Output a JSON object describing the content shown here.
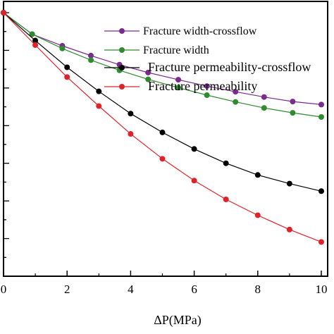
{
  "chart_data": {
    "type": "line",
    "xlabel": "ΔP(MPa)",
    "ylabel": "",
    "xlim": [
      0,
      10.2
    ],
    "ylim": [
      0.3,
      1.03
    ],
    "x_ticks": [
      0,
      2,
      4,
      6,
      8,
      10
    ],
    "x_tick_labels": [
      "0",
      "2",
      "4",
      "6",
      "8",
      "10"
    ],
    "grid": false,
    "legend_position": "top-right",
    "series": [
      {
        "name": "Fracture width-crossflow",
        "color": "#7b2a8e",
        "x": [
          0,
          0.9,
          1.85,
          2.75,
          3.65,
          4.55,
          5.5,
          6.4,
          7.3,
          8.2,
          9.1,
          10
        ],
        "y": [
          1.0,
          0.943,
          0.912,
          0.886,
          0.862,
          0.841,
          0.822,
          0.805,
          0.79,
          0.776,
          0.764,
          0.756
        ]
      },
      {
        "name": "Fracture width",
        "color": "#2e8b2e",
        "x": [
          0,
          0.9,
          1.85,
          2.75,
          3.65,
          4.55,
          5.5,
          6.4,
          7.3,
          8.2,
          9.1,
          10
        ],
        "y": [
          1.0,
          0.943,
          0.905,
          0.874,
          0.847,
          0.823,
          0.801,
          0.781,
          0.763,
          0.747,
          0.734,
          0.723
        ]
      },
      {
        "name": "Fracture permeability-crossflow",
        "color": "#000000",
        "x": [
          0,
          1,
          2,
          3,
          4,
          5,
          6,
          7,
          8,
          9,
          10
        ],
        "y": [
          1.0,
          0.926,
          0.855,
          0.791,
          0.732,
          0.682,
          0.638,
          0.6,
          0.569,
          0.546,
          0.526
        ]
      },
      {
        "name": "Fracture permeability",
        "color": "#e0222a",
        "x": [
          0,
          1,
          2,
          3,
          4,
          5,
          6,
          7,
          8,
          9,
          10
        ],
        "y": [
          1.0,
          0.914,
          0.829,
          0.752,
          0.678,
          0.612,
          0.554,
          0.504,
          0.462,
          0.424,
          0.391
        ]
      }
    ]
  },
  "colors": {
    "axis": "#000000",
    "background": "#ffffff"
  }
}
